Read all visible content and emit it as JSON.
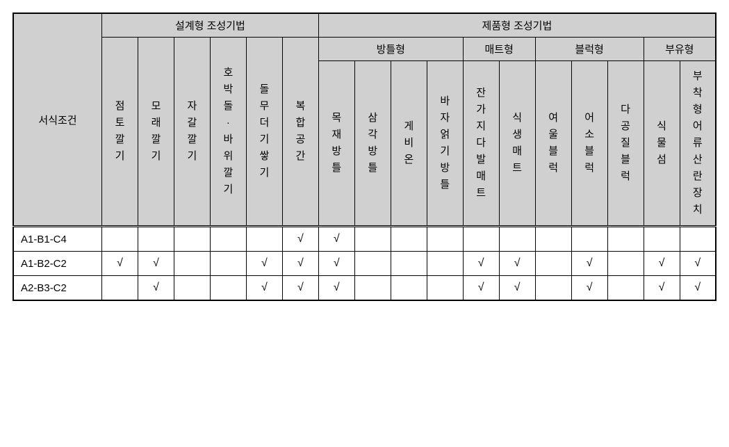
{
  "table": {
    "row_label_header": "서식조건",
    "group_level1": {
      "design": "설계형  조성기법",
      "product": "제품형  조성기법"
    },
    "group_level2": {
      "bangteul": "방틀형",
      "mat": "매트형",
      "block": "블럭형",
      "floating": "부유형"
    },
    "columns": [
      {
        "key": "c1",
        "label": "점토깔기"
      },
      {
        "key": "c2",
        "label": "모래깔기"
      },
      {
        "key": "c3",
        "label": "자갈깔기"
      },
      {
        "key": "c4",
        "label": "호박돌·바위깔기"
      },
      {
        "key": "c5",
        "label": "돌무더기쌓기"
      },
      {
        "key": "c6",
        "label": "복합공간"
      },
      {
        "key": "c7",
        "label": "목재방틀"
      },
      {
        "key": "c8",
        "label": "삼각방틀"
      },
      {
        "key": "c9",
        "label": "게비온"
      },
      {
        "key": "c10",
        "label": "바자얽기방틀"
      },
      {
        "key": "c11",
        "label": "잔가지다발매트"
      },
      {
        "key": "c12",
        "label": "식생매트"
      },
      {
        "key": "c13",
        "label": "여울블럭"
      },
      {
        "key": "c14",
        "label": "어소블럭"
      },
      {
        "key": "c15",
        "label": "다공질블럭"
      },
      {
        "key": "c16",
        "label": "식물섬"
      },
      {
        "key": "c17",
        "label": "부착형어류산란장치"
      }
    ],
    "rows": [
      {
        "label": "A1-B1-C4",
        "checks": {
          "c6": true,
          "c7": true
        }
      },
      {
        "label": "A1-B2-C2",
        "checks": {
          "c1": true,
          "c2": true,
          "c5": true,
          "c6": true,
          "c7": true,
          "c11": true,
          "c12": true,
          "c14": true,
          "c16": true,
          "c17": true
        }
      },
      {
        "label": "A2-B3-C2",
        "checks": {
          "c2": true,
          "c5": true,
          "c6": true,
          "c7": true,
          "c11": true,
          "c12": true,
          "c14": true,
          "c16": true,
          "c17": true
        }
      }
    ],
    "checkmark_glyph": "√",
    "colors": {
      "header_bg": "#d0d0d0",
      "body_bg": "#ffffff",
      "border": "#000000",
      "text": "#000000"
    },
    "fontsize": {
      "header": 15,
      "body": 15
    }
  }
}
